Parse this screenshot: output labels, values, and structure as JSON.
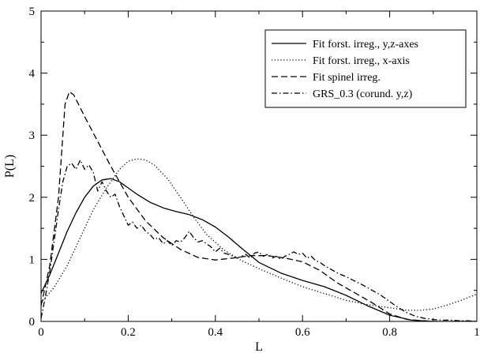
{
  "chart_data": {
    "type": "line",
    "xlabel": "L",
    "ylabel": "P(L)",
    "xlim": [
      0,
      1
    ],
    "ylim": [
      0,
      5
    ],
    "xticks": [
      0,
      0.2,
      0.4,
      0.6,
      0.8,
      1
    ],
    "xtick_labels": [
      "0",
      "0.2",
      "0.4",
      "0.6",
      "0.8",
      "1"
    ],
    "yticks": [
      0,
      1,
      2,
      3,
      4,
      5
    ],
    "ytick_labels": [
      "0",
      "1",
      "2",
      "3",
      "4",
      "5"
    ],
    "grid": false,
    "legend_position": "top-right",
    "series": [
      {
        "name": "Fit forst. irreg., y,z-axes",
        "style": "solid",
        "x": [
          0,
          0.02,
          0.04,
          0.06,
          0.08,
          0.1,
          0.12,
          0.14,
          0.16,
          0.18,
          0.2,
          0.22,
          0.25,
          0.28,
          0.31,
          0.34,
          0.37,
          0.4,
          0.43,
          0.46,
          0.5,
          0.55,
          0.6,
          0.65,
          0.7,
          0.75,
          0.8,
          0.85,
          0.9,
          1.0
        ],
        "y": [
          0.45,
          0.75,
          1.1,
          1.45,
          1.75,
          2.0,
          2.18,
          2.28,
          2.3,
          2.25,
          2.15,
          2.05,
          1.92,
          1.83,
          1.77,
          1.72,
          1.64,
          1.52,
          1.36,
          1.18,
          0.95,
          0.78,
          0.66,
          0.56,
          0.42,
          0.25,
          0.1,
          0.02,
          0.0,
          0.0
        ]
      },
      {
        "name": "Fit forst. irreg., x-axis",
        "style": "dotted",
        "x": [
          0,
          0.03,
          0.06,
          0.09,
          0.12,
          0.15,
          0.18,
          0.2,
          0.22,
          0.24,
          0.26,
          0.29,
          0.32,
          0.35,
          0.38,
          0.42,
          0.46,
          0.5,
          0.55,
          0.6,
          0.65,
          0.7,
          0.75,
          0.8,
          0.84,
          0.87,
          0.9,
          0.93,
          0.96,
          1.0
        ],
        "y": [
          0.3,
          0.55,
          0.9,
          1.35,
          1.8,
          2.15,
          2.45,
          2.58,
          2.62,
          2.6,
          2.52,
          2.3,
          2.0,
          1.68,
          1.4,
          1.15,
          0.98,
          0.85,
          0.7,
          0.56,
          0.45,
          0.34,
          0.27,
          0.22,
          0.18,
          0.18,
          0.2,
          0.26,
          0.33,
          0.44
        ]
      },
      {
        "name": "Fit spinel irreg.",
        "style": "dashed",
        "x": [
          0,
          0.02,
          0.04,
          0.055,
          0.065,
          0.075,
          0.1,
          0.13,
          0.16,
          0.2,
          0.24,
          0.28,
          0.32,
          0.36,
          0.4,
          0.44,
          0.48,
          0.52,
          0.56,
          0.6,
          0.64,
          0.68,
          0.72,
          0.76,
          0.8,
          0.84,
          0.9,
          1.0
        ],
        "y": [
          0.25,
          0.9,
          2.0,
          3.5,
          3.7,
          3.65,
          3.3,
          2.9,
          2.5,
          2.0,
          1.62,
          1.35,
          1.16,
          1.03,
          0.99,
          1.02,
          1.06,
          1.06,
          1.02,
          0.96,
          0.82,
          0.62,
          0.46,
          0.3,
          0.12,
          0.03,
          0.0,
          0.0
        ]
      },
      {
        "name": "GRS_0.3 (corund. y,z)",
        "style": "dashdot",
        "x": [
          0,
          0.01,
          0.02,
          0.03,
          0.04,
          0.05,
          0.06,
          0.07,
          0.08,
          0.09,
          0.1,
          0.11,
          0.12,
          0.13,
          0.14,
          0.15,
          0.16,
          0.17,
          0.18,
          0.19,
          0.2,
          0.21,
          0.22,
          0.23,
          0.24,
          0.25,
          0.26,
          0.27,
          0.28,
          0.29,
          0.3,
          0.31,
          0.32,
          0.33,
          0.34,
          0.35,
          0.36,
          0.37,
          0.38,
          0.39,
          0.4,
          0.41,
          0.42,
          0.43,
          0.44,
          0.45,
          0.46,
          0.47,
          0.48,
          0.49,
          0.5,
          0.51,
          0.52,
          0.53,
          0.54,
          0.55,
          0.56,
          0.57,
          0.58,
          0.59,
          0.6,
          0.61,
          0.62,
          0.63,
          0.64,
          0.65,
          0.66,
          0.67,
          0.68,
          0.69,
          0.7,
          0.72,
          0.74,
          0.76,
          0.78,
          0.8,
          0.82,
          0.84,
          0.86,
          0.88,
          0.9,
          0.92,
          0.94,
          0.96,
          0.98,
          1.0
        ],
        "y": [
          0.05,
          0.4,
          0.8,
          1.3,
          1.8,
          2.25,
          2.5,
          2.55,
          2.45,
          2.6,
          2.45,
          2.52,
          2.4,
          2.1,
          2.25,
          2.1,
          2.0,
          2.05,
          1.85,
          1.7,
          1.55,
          1.6,
          1.5,
          1.55,
          1.45,
          1.4,
          1.32,
          1.35,
          1.25,
          1.3,
          1.22,
          1.3,
          1.28,
          1.35,
          1.45,
          1.35,
          1.28,
          1.3,
          1.25,
          1.2,
          1.12,
          1.18,
          1.1,
          1.08,
          1.05,
          1.02,
          1.05,
          1.08,
          1.02,
          1.1,
          1.12,
          1.05,
          1.08,
          1.02,
          1.05,
          1.0,
          1.05,
          1.08,
          1.12,
          1.08,
          1.1,
          1.02,
          1.05,
          0.98,
          0.95,
          0.9,
          0.86,
          0.82,
          0.78,
          0.75,
          0.72,
          0.65,
          0.58,
          0.5,
          0.42,
          0.32,
          0.22,
          0.14,
          0.08,
          0.05,
          0.03,
          0.02,
          0.02,
          0.01,
          0.01,
          0.0
        ]
      }
    ]
  }
}
